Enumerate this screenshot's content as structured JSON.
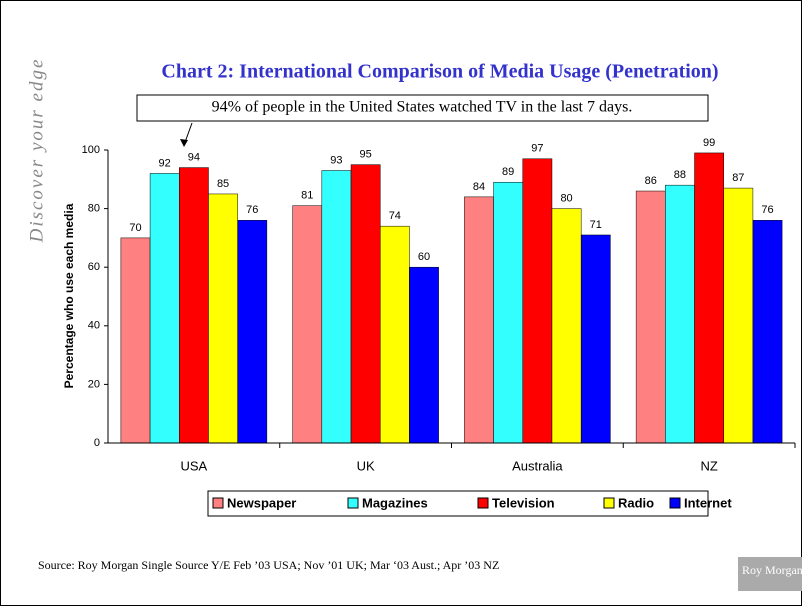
{
  "chart_data": {
    "type": "bar",
    "title": "Chart 2: International Comparison of Media Usage (Penetration)",
    "annotation": "94% of people in the United States watched TV in the last 7 days.",
    "y_label": "Percentage who use each media",
    "categories": [
      "USA",
      "UK",
      "Australia",
      "NZ"
    ],
    "series": [
      {
        "name": "Newspaper",
        "color": "#ff8080",
        "values": [
          70,
          81,
          84,
          86
        ]
      },
      {
        "name": "Magazines",
        "color": "#33ffff",
        "values": [
          92,
          93,
          89,
          88
        ]
      },
      {
        "name": "Television",
        "color": "#ff0000",
        "values": [
          94,
          95,
          97,
          99
        ]
      },
      {
        "name": "Radio",
        "color": "#ffff00",
        "values": [
          85,
          74,
          80,
          87
        ]
      },
      {
        "name": "Internet",
        "color": "#0000ff",
        "values": [
          76,
          60,
          71,
          76
        ]
      }
    ],
    "ylim": [
      0,
      100
    ],
    "yticks": [
      0,
      20,
      40,
      60,
      80,
      100
    ],
    "grid": false,
    "legend": "bottom"
  },
  "source": "Source: Roy Morgan Single Source Y/E Feb ’03 USA; Nov ’01 UK; Mar ‘03 Aust.; Apr ’03 NZ",
  "side_text": "Discover your edge",
  "logo": "Roy Morgan"
}
